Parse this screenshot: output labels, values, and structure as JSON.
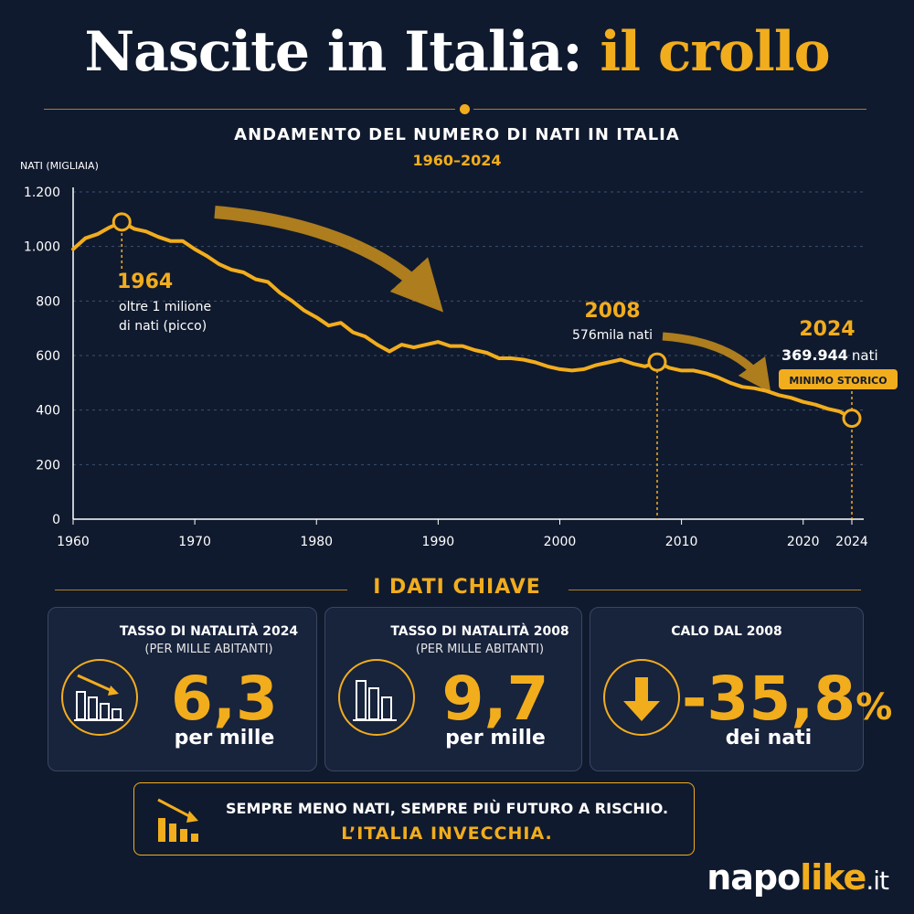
{
  "header": {
    "title_main": "Nascite in Italia: ",
    "title_accent": "il crollo",
    "subtitle": "ANDAMENTO DEL NUMERO DI NATI IN ITALIA",
    "period": "1960–2024"
  },
  "chart_data": {
    "type": "line",
    "ylabel": "NATI (MIGLIAIA)",
    "ylim": [
      0,
      1200
    ],
    "xlim": [
      1960,
      2025
    ],
    "yticks": [
      0,
      200,
      400,
      600,
      800,
      1000,
      1200
    ],
    "ytick_labels": [
      "0",
      "200",
      "400",
      "600",
      "800",
      "1.000",
      "1.200"
    ],
    "xticks": [
      1960,
      1970,
      1980,
      1990,
      2000,
      2010,
      2020,
      2024
    ],
    "grid": true,
    "color": "#f2ad1d",
    "series": [
      {
        "x": [
          1960,
          1961,
          1962,
          1963,
          1964,
          1965,
          1966,
          1967,
          1968,
          1969,
          1970,
          1971,
          1972,
          1973,
          1974,
          1975,
          1976,
          1977,
          1978,
          1979,
          1980,
          1981,
          1982,
          1983,
          1984,
          1985,
          1986,
          1987,
          1988,
          1989,
          1990,
          1991,
          1992,
          1993,
          1994,
          1995,
          1996,
          1997,
          1998,
          1999,
          2000,
          2001,
          2002,
          2003,
          2004,
          2005,
          2006,
          2007,
          2008,
          2009,
          2010,
          2011,
          2012,
          2013,
          2014,
          2015,
          2016,
          2017,
          2018,
          2019,
          2020,
          2021,
          2022,
          2023,
          2024
        ],
        "y": [
          990,
          1030,
          1045,
          1070,
          1090,
          1065,
          1055,
          1035,
          1020,
          1020,
          990,
          965,
          935,
          915,
          905,
          880,
          870,
          830,
          800,
          765,
          740,
          710,
          720,
          685,
          670,
          640,
          615,
          640,
          630,
          640,
          650,
          635,
          635,
          620,
          610,
          590,
          590,
          585,
          575,
          560,
          550,
          545,
          550,
          565,
          575,
          585,
          570,
          560,
          576,
          555,
          545,
          545,
          535,
          520,
          500,
          485,
          480,
          470,
          455,
          445,
          430,
          420,
          405,
          395,
          370
        ]
      }
    ],
    "annotations": [
      {
        "year": "1964",
        "lines": [
          "oltre 1 milione",
          "di nati (picco)"
        ]
      },
      {
        "year": "2008",
        "lines": [
          "576mila nati"
        ]
      },
      {
        "year": "2024",
        "value": "369.944",
        "unit": "nati",
        "badge": "MINIMO STORICO"
      }
    ]
  },
  "key_data": {
    "heading": "I DATI CHIAVE",
    "cards": [
      {
        "title": "TASSO DI NATALITÀ 2024",
        "sub": "(PER MILLE ABITANTI)",
        "value": "6,3",
        "unit": "per mille",
        "icon": "declining-bars-icon"
      },
      {
        "title": "TASSO DI NATALITÀ 2008",
        "sub": "(PER MILLE ABITANTI)",
        "value": "9,7",
        "unit": "per mille",
        "icon": "bars-icon"
      },
      {
        "title": "CALO DAL 2008",
        "sub": "",
        "value": "-35,8",
        "value_suffix": "%",
        "unit": "dei nati",
        "icon": "down-arrow-icon"
      }
    ]
  },
  "banner": {
    "line1": "SEMPRE MENO NATI, SEMPRE PIÙ FUTURO A RISCHIO.",
    "line2": "L’ITALIA INVECCHIA."
  },
  "brand": {
    "part1": "napo",
    "part2": "like",
    "part3": ".it"
  }
}
